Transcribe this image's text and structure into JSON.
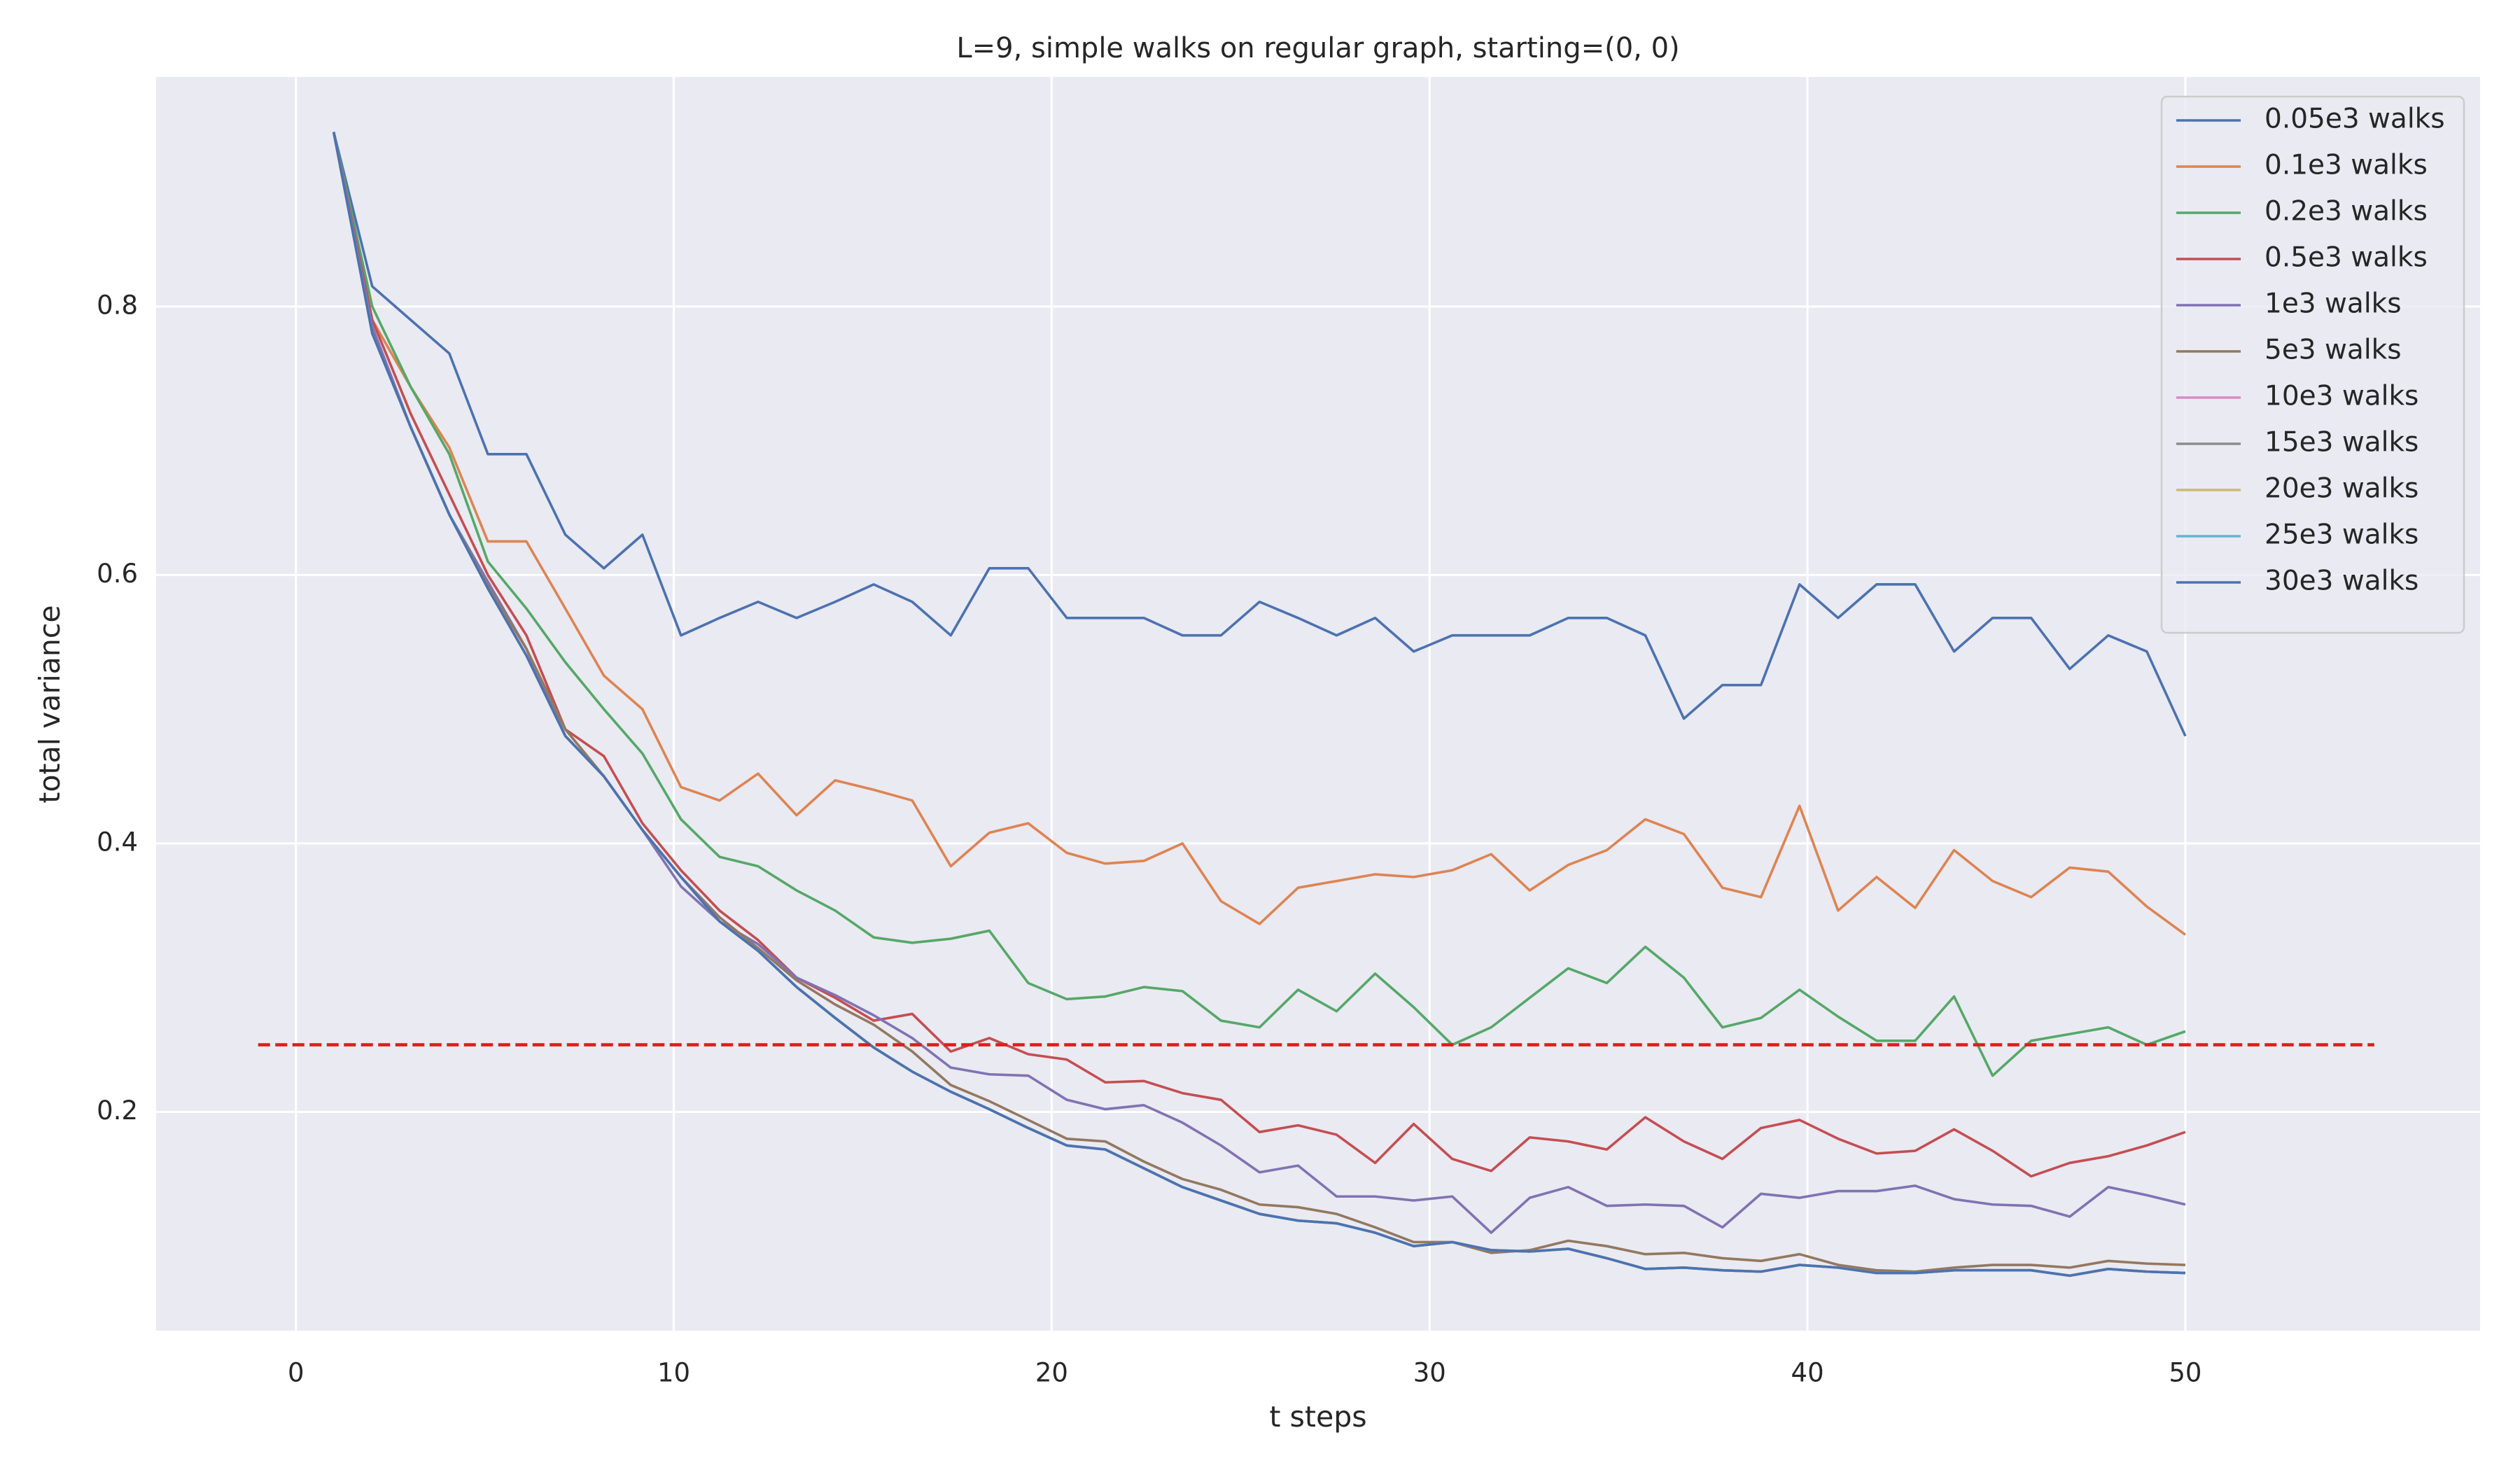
{
  "chart_data": {
    "type": "line",
    "title": "L=9, simple walks on regular graph, starting=(0, 0)",
    "xlabel": "t steps",
    "ylabel": "total variance",
    "xlim": [
      -3.7,
      57.8
    ],
    "ylim": [
      0.037,
      0.971
    ],
    "xticks": [
      0,
      10,
      20,
      30,
      40,
      50
    ],
    "yticks": [
      0.2,
      0.4,
      0.6,
      0.8
    ],
    "grid": true,
    "legend": "upper right",
    "x": [
      1,
      2.02,
      3.04,
      4.06,
      5.08,
      6.1,
      7.13,
      8.15,
      9.17,
      10.19,
      11.21,
      12.23,
      13.25,
      14.27,
      15.29,
      16.31,
      17.33,
      18.35,
      19.38,
      20.4,
      21.42,
      22.44,
      23.46,
      24.48,
      25.5,
      26.52,
      27.54,
      28.56,
      29.58,
      30.6,
      31.63,
      32.65,
      33.67,
      34.69,
      35.71,
      36.73,
      37.75,
      38.77,
      39.79,
      40.81,
      41.83,
      42.85,
      43.88,
      44.9,
      45.92,
      46.94,
      47.96,
      48.98,
      50
    ],
    "series": [
      {
        "name": "0.05e3 walks",
        "color": "#4c72b0",
        "values": [
          0.93,
          0.815,
          0.79,
          0.765,
          0.69,
          0.69,
          0.63,
          0.605,
          0.63,
          0.555,
          0.568,
          0.58,
          0.568,
          0.58,
          0.593,
          0.58,
          0.555,
          0.605,
          0.605,
          0.568,
          0.568,
          0.568,
          0.555,
          0.555,
          0.58,
          0.568,
          0.555,
          0.568,
          0.543,
          0.555,
          0.555,
          0.555,
          0.568,
          0.568,
          0.555,
          0.493,
          0.518,
          0.518,
          0.593,
          0.568,
          0.593,
          0.593,
          0.543,
          0.568,
          0.568,
          0.53,
          0.555,
          0.543,
          0.48
        ]
      },
      {
        "name": "0.1e3 walks",
        "color": "#dd8452",
        "values": [
          0.93,
          0.79,
          0.74,
          0.695,
          0.625,
          0.625,
          0.575,
          0.525,
          0.5,
          0.442,
          0.432,
          0.452,
          0.421,
          0.447,
          0.44,
          0.432,
          0.383,
          0.408,
          0.415,
          0.393,
          0.385,
          0.387,
          0.4,
          0.357,
          0.34,
          0.367,
          0.372,
          0.377,
          0.375,
          0.38,
          0.392,
          0.365,
          0.384,
          0.395,
          0.418,
          0.407,
          0.367,
          0.36,
          0.428,
          0.35,
          0.375,
          0.352,
          0.395,
          0.372,
          0.36,
          0.382,
          0.379,
          0.353,
          0.332
        ]
      },
      {
        "name": "0.2e3 walks",
        "color": "#55a868",
        "values": [
          0.93,
          0.8,
          0.74,
          0.69,
          0.61,
          0.575,
          0.535,
          0.5,
          0.467,
          0.418,
          0.39,
          0.383,
          0.365,
          0.35,
          0.33,
          0.326,
          0.329,
          0.335,
          0.296,
          0.284,
          0.286,
          0.293,
          0.29,
          0.268,
          0.263,
          0.291,
          0.275,
          0.303,
          0.278,
          0.25,
          0.263,
          0.285,
          0.307,
          0.296,
          0.323,
          0.3,
          0.263,
          0.27,
          0.291,
          0.271,
          0.253,
          0.253,
          0.286,
          0.227,
          0.253,
          0.258,
          0.263,
          0.25,
          0.26
        ]
      },
      {
        "name": "0.5e3 walks",
        "color": "#c44e52",
        "values": [
          0.93,
          0.79,
          0.72,
          0.66,
          0.6,
          0.555,
          0.485,
          0.465,
          0.415,
          0.38,
          0.35,
          0.328,
          0.3,
          0.285,
          0.268,
          0.273,
          0.245,
          0.255,
          0.243,
          0.239,
          0.222,
          0.223,
          0.214,
          0.209,
          0.185,
          0.19,
          0.183,
          0.162,
          0.191,
          0.165,
          0.156,
          0.181,
          0.178,
          0.172,
          0.196,
          0.178,
          0.165,
          0.188,
          0.194,
          0.18,
          0.169,
          0.171,
          0.187,
          0.171,
          0.152,
          0.162,
          0.167,
          0.175,
          0.185
        ]
      },
      {
        "name": "1e3 walks",
        "color": "#8172b3",
        "values": [
          0.93,
          0.785,
          0.71,
          0.645,
          0.595,
          0.545,
          0.48,
          0.45,
          0.41,
          0.368,
          0.342,
          0.325,
          0.3,
          0.287,
          0.272,
          0.255,
          0.233,
          0.228,
          0.227,
          0.209,
          0.202,
          0.205,
          0.192,
          0.175,
          0.155,
          0.16,
          0.137,
          0.137,
          0.134,
          0.137,
          0.11,
          0.136,
          0.144,
          0.13,
          0.131,
          0.13,
          0.114,
          0.139,
          0.136,
          0.141,
          0.141,
          0.145,
          0.135,
          0.131,
          0.13,
          0.122,
          0.144,
          0.138,
          0.131
        ]
      },
      {
        "name": "5e3 walks",
        "color": "#937860",
        "values": [
          0.93,
          0.78,
          0.71,
          0.645,
          0.592,
          0.545,
          0.485,
          0.45,
          0.41,
          0.375,
          0.345,
          0.322,
          0.298,
          0.28,
          0.265,
          0.245,
          0.22,
          0.208,
          0.194,
          0.18,
          0.178,
          0.163,
          0.15,
          0.142,
          0.131,
          0.129,
          0.124,
          0.114,
          0.103,
          0.103,
          0.095,
          0.097,
          0.104,
          0.1,
          0.094,
          0.095,
          0.091,
          0.089,
          0.094,
          0.086,
          0.082,
          0.081,
          0.084,
          0.086,
          0.086,
          0.084,
          0.089,
          0.087,
          0.086
        ]
      },
      {
        "name": "10e3 walks",
        "color": "#da8bc3",
        "values": [
          0.93,
          0.78,
          0.71,
          0.645,
          0.59,
          0.54,
          0.48,
          0.45,
          0.41,
          0.375,
          0.342,
          0.32,
          0.293,
          0.27,
          0.248,
          0.23,
          0.215,
          0.202,
          0.188,
          0.175,
          0.172,
          0.158,
          0.144,
          0.134,
          0.124,
          0.119,
          0.117,
          0.11,
          0.1,
          0.103,
          0.097,
          0.096,
          0.098,
          0.091,
          0.083,
          0.084,
          0.082,
          0.081,
          0.086,
          0.084,
          0.08,
          0.08,
          0.082,
          0.082,
          0.082,
          0.078,
          0.083,
          0.081,
          0.08
        ]
      },
      {
        "name": "15e3 walks",
        "color": "#8c8c8c",
        "values": [
          0.93,
          0.78,
          0.71,
          0.645,
          0.59,
          0.54,
          0.48,
          0.45,
          0.41,
          0.375,
          0.342,
          0.32,
          0.293,
          0.27,
          0.248,
          0.23,
          0.215,
          0.202,
          0.188,
          0.175,
          0.172,
          0.158,
          0.144,
          0.134,
          0.124,
          0.119,
          0.117,
          0.11,
          0.1,
          0.103,
          0.097,
          0.096,
          0.098,
          0.091,
          0.083,
          0.084,
          0.082,
          0.081,
          0.086,
          0.084,
          0.08,
          0.08,
          0.082,
          0.082,
          0.082,
          0.078,
          0.083,
          0.081,
          0.08
        ]
      },
      {
        "name": "20e3 walks",
        "color": "#ccb974",
        "values": [
          0.93,
          0.78,
          0.71,
          0.645,
          0.59,
          0.54,
          0.48,
          0.45,
          0.41,
          0.375,
          0.342,
          0.32,
          0.293,
          0.27,
          0.248,
          0.23,
          0.215,
          0.202,
          0.188,
          0.175,
          0.172,
          0.158,
          0.144,
          0.134,
          0.124,
          0.119,
          0.117,
          0.11,
          0.1,
          0.103,
          0.097,
          0.096,
          0.098,
          0.091,
          0.083,
          0.084,
          0.082,
          0.081,
          0.086,
          0.084,
          0.08,
          0.08,
          0.082,
          0.082,
          0.082,
          0.078,
          0.083,
          0.081,
          0.08
        ]
      },
      {
        "name": "25e3 walks",
        "color": "#64b5cd",
        "values": [
          0.93,
          0.78,
          0.71,
          0.645,
          0.59,
          0.54,
          0.48,
          0.45,
          0.41,
          0.375,
          0.342,
          0.32,
          0.293,
          0.27,
          0.248,
          0.23,
          0.215,
          0.202,
          0.188,
          0.175,
          0.172,
          0.158,
          0.144,
          0.134,
          0.124,
          0.119,
          0.117,
          0.11,
          0.1,
          0.103,
          0.097,
          0.096,
          0.098,
          0.091,
          0.083,
          0.084,
          0.082,
          0.081,
          0.086,
          0.084,
          0.08,
          0.08,
          0.082,
          0.082,
          0.082,
          0.078,
          0.083,
          0.081,
          0.08
        ]
      },
      {
        "name": "30e3 walks",
        "color": "#4c72b0",
        "values": [
          0.93,
          0.78,
          0.71,
          0.645,
          0.59,
          0.54,
          0.48,
          0.45,
          0.41,
          0.375,
          0.342,
          0.32,
          0.293,
          0.27,
          0.248,
          0.23,
          0.215,
          0.202,
          0.188,
          0.175,
          0.172,
          0.158,
          0.144,
          0.134,
          0.124,
          0.119,
          0.117,
          0.11,
          0.1,
          0.103,
          0.097,
          0.096,
          0.098,
          0.091,
          0.083,
          0.084,
          0.082,
          0.081,
          0.086,
          0.084,
          0.08,
          0.08,
          0.082,
          0.082,
          0.082,
          0.078,
          0.083,
          0.081,
          0.08
        ]
      }
    ],
    "hline": {
      "y": 0.25,
      "xmin": -1,
      "xmax": 55,
      "color": "#e41a1c"
    }
  }
}
